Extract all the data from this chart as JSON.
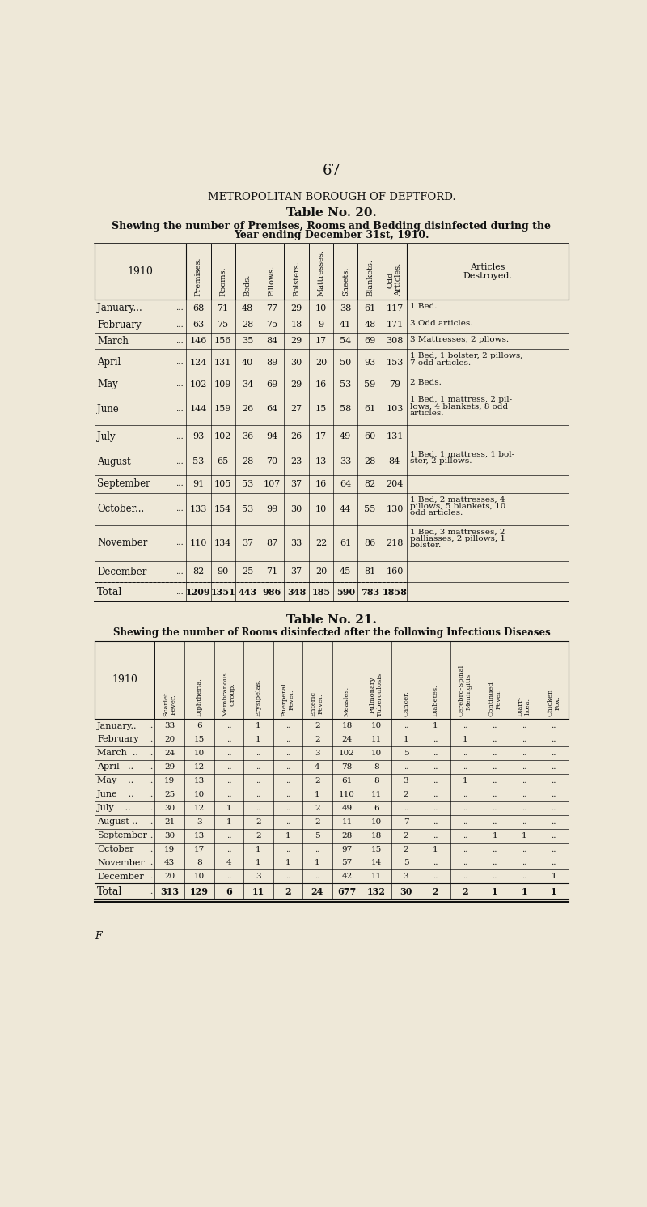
{
  "page_num": "67",
  "institution": "METROPOLITAN BOROUGH OF DEPTFORD.",
  "table20_title": "Table No. 20.",
  "table20_subtitle_line1": "Shewing the number of Premises, Rooms and Bedding disinfected during the",
  "table20_subtitle_line2": "Year ending December 31st, 1910.",
  "table20_col_headers": [
    "Premises.",
    "Rooms.",
    "Beds.",
    "Pillows.",
    "Bolsters.",
    "Mattresses.",
    "Sheets.",
    "Blankets.",
    "Odd\nArticles."
  ],
  "table20_months": [
    "January...",
    "February",
    "March",
    "April",
    "May",
    "June",
    "July",
    "August",
    "September",
    "October...",
    "November",
    "December"
  ],
  "table20_month_dots": [
    "...",
    "...",
    "...  ...",
    "...  ...",
    "...  ...",
    "...  ...",
    "...  ...",
    "...",
    "...",
    "...",
    "...",
    "..."
  ],
  "table20_data": [
    [
      68,
      71,
      48,
      77,
      29,
      10,
      38,
      61,
      117,
      "1 Bed."
    ],
    [
      63,
      75,
      28,
      75,
      18,
      9,
      41,
      48,
      171,
      "3 Odd articles."
    ],
    [
      146,
      156,
      35,
      84,
      29,
      17,
      54,
      69,
      308,
      "3 Mattresses, 2 pllows."
    ],
    [
      124,
      131,
      40,
      89,
      30,
      20,
      50,
      93,
      153,
      "1 Bed, 1 bolster, 2 pillows,\n7 odd articles."
    ],
    [
      102,
      109,
      34,
      69,
      29,
      16,
      53,
      59,
      79,
      "2 Beds."
    ],
    [
      144,
      159,
      26,
      64,
      27,
      15,
      58,
      61,
      103,
      "1 Bed, 1 mattress, 2 pil-\nlows, 4 blankets, 8 odd\narticles."
    ],
    [
      93,
      102,
      36,
      94,
      26,
      17,
      49,
      60,
      131,
      ""
    ],
    [
      53,
      65,
      28,
      70,
      23,
      13,
      33,
      28,
      84,
      "1 Bed, 1 mattress, 1 bol-\nster, 2 pillows."
    ],
    [
      91,
      105,
      53,
      107,
      37,
      16,
      64,
      82,
      204,
      ""
    ],
    [
      133,
      154,
      53,
      99,
      30,
      10,
      44,
      55,
      130,
      "1 Bed, 2 mattresses, 4\npillows, 5 blankets, 10\nodd articles."
    ],
    [
      110,
      134,
      37,
      87,
      33,
      22,
      61,
      86,
      218,
      "1 Bed, 3 mattresses, 2\npalliasses, 2 pillows, 1\nbolster."
    ],
    [
      82,
      90,
      25,
      71,
      37,
      20,
      45,
      81,
      160,
      ""
    ]
  ],
  "table20_totals": [
    1209,
    1351,
    443,
    986,
    348,
    185,
    590,
    783,
    1858
  ],
  "table21_title": "Table No. 21.",
  "table21_subtitle": "Shewing the number of Rooms disinfected after the following Infectious Diseases",
  "table21_col_headers": [
    "Scarlet\nFever.",
    "Diphtheria.",
    "Membranous\nCroup.",
    "Erysipelas.",
    "Puerperal\nFever.",
    "Enteric\nFever.",
    "Measles.",
    "Pulmonary\nTuberculosis",
    "Cancer.",
    "Diabetes.",
    "Cerebro-Spinal\nMeningitis.",
    "Continued\nFever.",
    "Diarr-\nhœa.",
    "Chicken\nPox."
  ],
  "table21_months": [
    "January..",
    "February",
    "March  ..",
    "April   ..",
    "May    ..",
    "June    ..",
    "July    ..",
    "August ..",
    "September",
    "October",
    "November",
    "December"
  ],
  "table21_data": [
    [
      33,
      6,
      "..",
      1,
      "..",
      2,
      18,
      10,
      "..",
      1,
      "..",
      "..",
      "..",
      ".."
    ],
    [
      20,
      15,
      "..",
      1,
      "..",
      2,
      24,
      11,
      1,
      "..",
      1,
      "..",
      "..",
      ".."
    ],
    [
      24,
      10,
      "..",
      "..",
      "..",
      3,
      102,
      10,
      5,
      "..",
      "..",
      "..",
      "..",
      ".."
    ],
    [
      29,
      12,
      "..",
      "..",
      "..",
      4,
      78,
      8,
      "..",
      "..",
      "..",
      "..",
      "..",
      ".."
    ],
    [
      19,
      13,
      "..",
      "..",
      "..",
      2,
      61,
      8,
      3,
      "..",
      1,
      "..",
      "..",
      ".."
    ],
    [
      25,
      10,
      "..",
      "..",
      "..",
      1,
      110,
      11,
      2,
      "..",
      "..",
      "..",
      "..",
      ".."
    ],
    [
      30,
      12,
      1,
      "..",
      "..",
      2,
      49,
      6,
      "..",
      "..",
      "..",
      "..",
      "..",
      ".."
    ],
    [
      21,
      3,
      1,
      2,
      "..",
      2,
      11,
      10,
      7,
      "..",
      "..",
      "..",
      "..",
      ".."
    ],
    [
      30,
      13,
      "..",
      2,
      1,
      5,
      28,
      18,
      2,
      "..",
      "..",
      1,
      1,
      ".."
    ],
    [
      19,
      17,
      "..",
      1,
      "..",
      "..",
      97,
      15,
      2,
      1,
      "..",
      "..",
      "..",
      ".."
    ],
    [
      43,
      8,
      4,
      1,
      1,
      1,
      57,
      14,
      5,
      "..",
      "..",
      "..",
      "..",
      ".."
    ],
    [
      20,
      10,
      "..",
      3,
      "..",
      "..",
      42,
      11,
      3,
      "..",
      "..",
      "..",
      "..",
      1
    ]
  ],
  "table21_totals": [
    313,
    129,
    6,
    11,
    2,
    24,
    677,
    132,
    30,
    2,
    2,
    1,
    1,
    1
  ],
  "bg_color": "#eee8d8",
  "text_color": "#111111",
  "footer_letter": "F"
}
